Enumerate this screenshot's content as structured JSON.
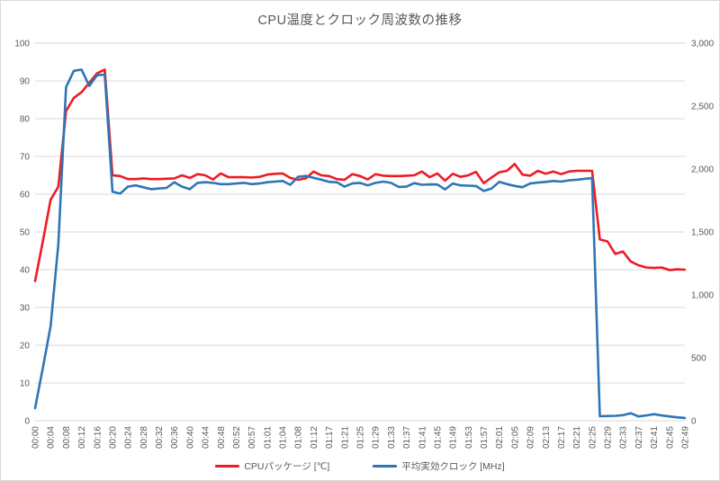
{
  "chart_data": {
    "type": "line",
    "title": "CPU温度とクロック周波数の推移",
    "grid": true,
    "legend_position": "bottom",
    "points_per_label": 2,
    "x_labels": [
      "00:00",
      "00:04",
      "00:08",
      "00:12",
      "00:16",
      "00:20",
      "00:24",
      "00:28",
      "00:32",
      "00:36",
      "00:40",
      "00:44",
      "00:48",
      "00:52",
      "00:57",
      "01:01",
      "01:04",
      "01:08",
      "01:12",
      "01:17",
      "01:21",
      "01:25",
      "01:29",
      "01:33",
      "01:37",
      "01:41",
      "01:45",
      "01:49",
      "01:53",
      "01:57",
      "02:01",
      "02:05",
      "02:09",
      "02:13",
      "02:17",
      "02:21",
      "02:25",
      "02:29",
      "02:33",
      "02:37",
      "02:41",
      "02:45",
      "02:49"
    ],
    "left_axis": {
      "min": 0,
      "max": 100,
      "step": 10,
      "tick_labels": [
        "0",
        "10",
        "20",
        "30",
        "40",
        "50",
        "60",
        "70",
        "80",
        "90",
        "100"
      ]
    },
    "right_axis": {
      "min": 0,
      "max": 3000,
      "step": 500,
      "tick_labels": [
        "0",
        "500",
        "1,000",
        "1,500",
        "2,000",
        "2,500",
        "3,000"
      ]
    },
    "series": [
      {
        "name": "CPUパッケージ [℃]",
        "axis": "left",
        "color": "#ed1c24",
        "values": [
          37,
          47.5,
          58.5,
          62,
          82,
          85.5,
          87,
          89.5,
          92,
          93,
          65,
          64.8,
          64,
          64,
          64.2,
          64,
          64,
          64.1,
          64.2,
          65,
          64.3,
          65.3,
          65,
          63.9,
          65.5,
          64.5,
          64.5,
          64.5,
          64.4,
          64.6,
          65.2,
          65.4,
          65.5,
          64.3,
          63.8,
          64.2,
          66,
          65,
          64.8,
          64,
          63.8,
          65.3,
          64.8,
          63.9,
          65.3,
          64.9,
          64.8,
          64.8,
          64.9,
          65,
          66,
          64.5,
          65.5,
          63.6,
          65.4,
          64.6,
          65,
          65.9,
          62.9,
          64.4,
          65.8,
          66.2,
          68,
          65.2,
          64.9,
          66.2,
          65.4,
          66,
          65.3,
          66,
          66.2,
          66.2,
          66.2,
          48,
          47.5,
          44.2,
          44.8,
          42.2,
          41.2,
          40.6,
          40.5,
          40.6,
          39.9,
          40.1,
          40
        ]
      },
      {
        "name": "平均実効クロック [MHz]",
        "axis": "right",
        "color": "#2e75b6",
        "values": [
          100,
          420,
          750,
          1400,
          2650,
          2780,
          2790,
          2660,
          2745,
          2750,
          1820,
          1805,
          1860,
          1870,
          1855,
          1840,
          1845,
          1850,
          1895,
          1860,
          1840,
          1890,
          1895,
          1890,
          1880,
          1880,
          1885,
          1890,
          1880,
          1885,
          1895,
          1900,
          1905,
          1875,
          1938,
          1945,
          1930,
          1915,
          1898,
          1895,
          1860,
          1885,
          1890,
          1870,
          1890,
          1900,
          1890,
          1858,
          1860,
          1888,
          1875,
          1878,
          1877,
          1838,
          1885,
          1870,
          1868,
          1865,
          1826,
          1845,
          1898,
          1880,
          1866,
          1856,
          1885,
          1892,
          1898,
          1905,
          1900,
          1910,
          1915,
          1922,
          1928,
          36,
          38,
          39,
          44,
          60,
          34,
          42,
          52,
          42,
          34,
          27,
          22
        ]
      }
    ],
    "colors": {
      "grid": "#d9d9d9",
      "border": "#d9d9d9",
      "text": "#595959",
      "background": "#ffffff"
    }
  }
}
